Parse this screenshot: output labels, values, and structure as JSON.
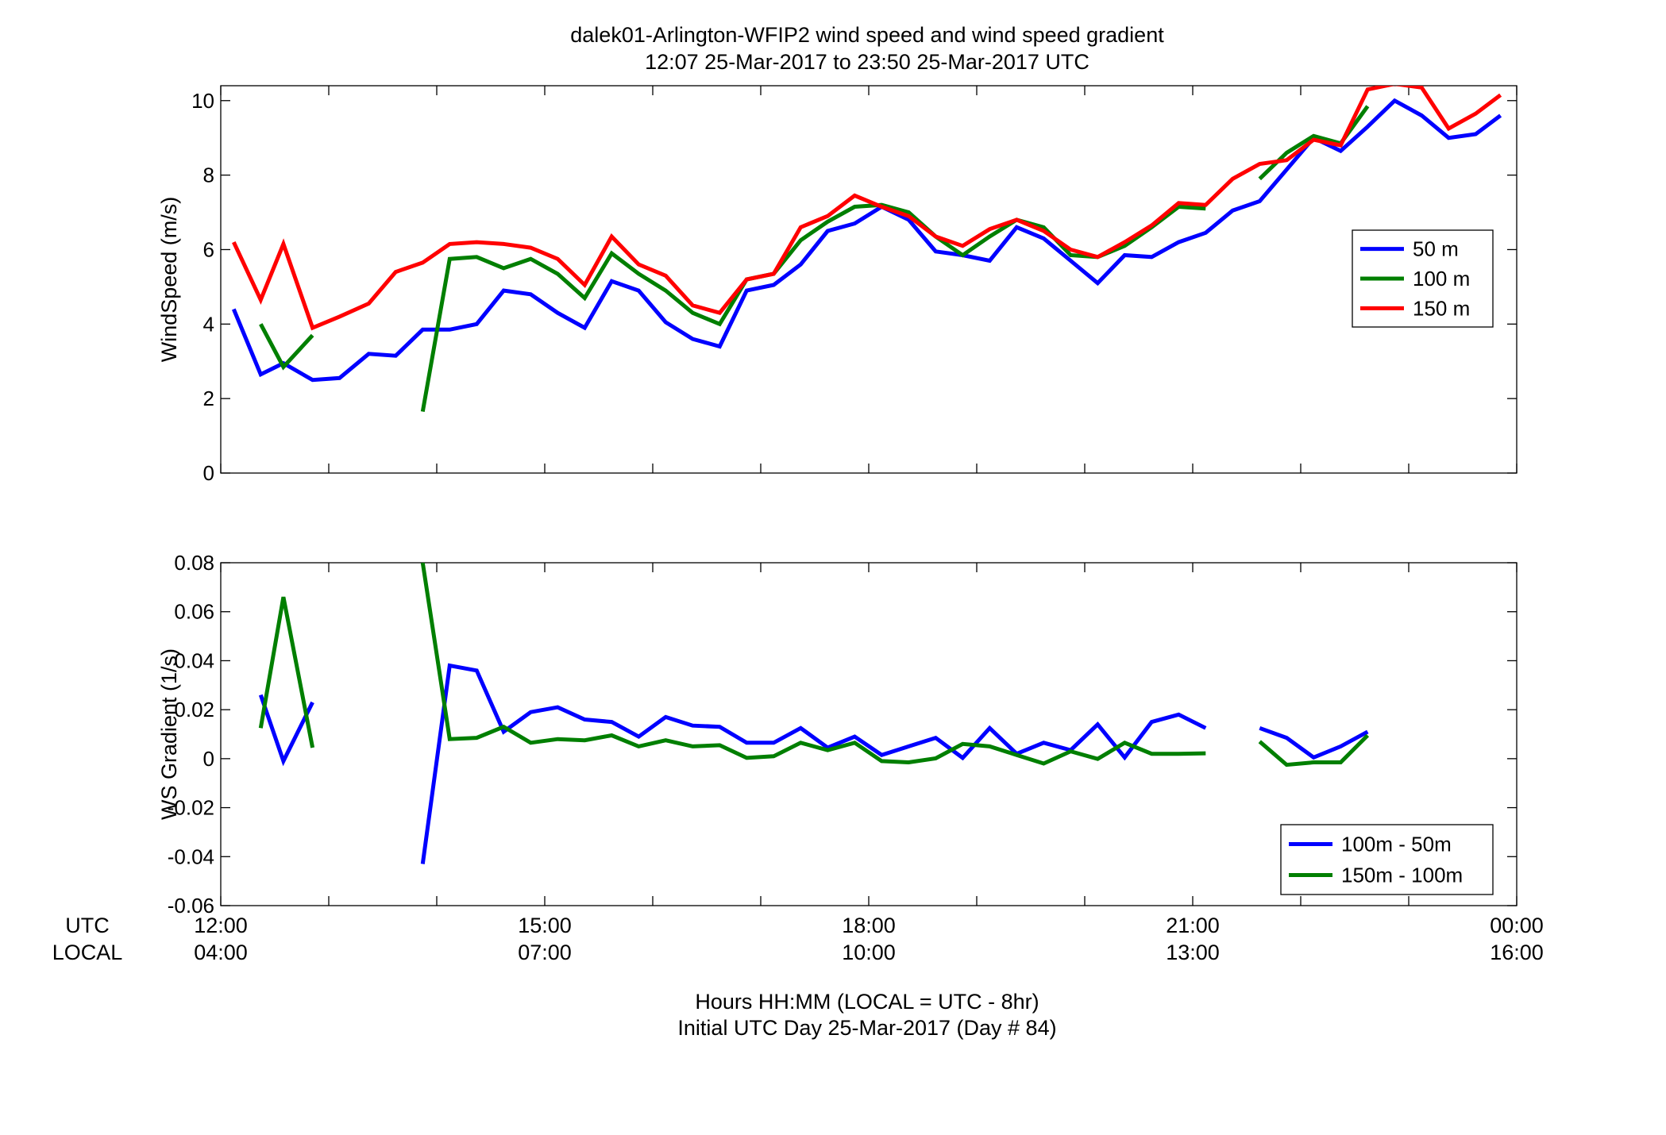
{
  "header": {
    "title_line1": "dalek01-Arlington-WFIP2  wind speed and wind speed gradient",
    "title_line2": "12:07 25-Mar-2017 to 23:50 25-Mar-2017  UTC"
  },
  "footer": {
    "xlabel_line1": "Hours HH:MM  (LOCAL = UTC - 8hr)",
    "xlabel_line2": "Initial UTC Day 25-Mar-2017 (Day # 84)",
    "row_label_utc": "UTC",
    "row_label_local": "LOCAL"
  },
  "x_ticks": {
    "utc": [
      "12:00",
      "15:00",
      "18:00",
      "21:00",
      "00:00"
    ],
    "local": [
      "04:00",
      "07:00",
      "10:00",
      "13:00",
      "16:00"
    ],
    "hours": [
      12,
      15,
      18,
      21,
      24
    ]
  },
  "colors": {
    "blue": "#0000ff",
    "green": "#007f00",
    "red": "#ff0000"
  },
  "chart_data": [
    {
      "type": "line",
      "id": "windspeed",
      "ylabel": "WindSpeed (m/s)",
      "xlim": [
        12,
        24
      ],
      "ylim": [
        0,
        10.4
      ],
      "yticks": [
        0,
        2,
        4,
        6,
        8,
        10
      ],
      "ytick_labels": [
        "0",
        "2",
        "4",
        "6",
        "8",
        "10"
      ],
      "minor_xticks_every_hours": 1,
      "legend_position": "right-center",
      "series": [
        {
          "name": "50 m",
          "color": "#0000ff",
          "x": [
            12.12,
            12.37,
            12.58,
            12.85,
            13.1,
            13.37,
            13.62,
            13.87,
            14.12,
            14.37,
            14.62,
            14.87,
            15.12,
            15.37,
            15.62,
            15.87,
            16.12,
            16.37,
            16.62,
            16.87,
            17.12,
            17.37,
            17.62,
            17.87,
            18.12,
            18.37,
            18.62,
            18.87,
            19.12,
            19.37,
            19.62,
            19.87,
            20.12,
            20.37,
            20.62,
            20.87,
            21.12,
            21.37,
            21.62,
            21.87,
            22.12,
            22.37,
            22.62,
            22.87,
            23.12,
            23.37,
            23.62,
            23.85
          ],
          "y": [
            4.4,
            2.65,
            2.95,
            2.5,
            2.55,
            3.2,
            3.15,
            3.85,
            3.85,
            4.0,
            4.9,
            4.8,
            4.3,
            3.9,
            5.15,
            4.9,
            4.05,
            3.6,
            3.4,
            4.9,
            5.05,
            5.6,
            6.5,
            6.7,
            7.15,
            6.8,
            5.95,
            5.85,
            5.7,
            6.6,
            6.3,
            5.7,
            5.1,
            5.85,
            5.8,
            6.2,
            6.45,
            7.05,
            7.3,
            8.15,
            9.0,
            8.65,
            9.3,
            10.0,
            9.6,
            9.0,
            9.1,
            9.6
          ]
        },
        {
          "name": "100 m",
          "color": "#007f00",
          "x": [
            12.37,
            12.58,
            12.85,
            null,
            13.87,
            14.12,
            14.37,
            14.62,
            14.87,
            15.12,
            15.37,
            15.62,
            15.87,
            16.12,
            16.37,
            16.62,
            16.87,
            17.12,
            17.37,
            17.62,
            17.87,
            18.12,
            18.37,
            18.62,
            18.87,
            19.12,
            19.37,
            19.62,
            19.87,
            20.12,
            20.37,
            20.62,
            20.87,
            21.12,
            null,
            21.62,
            21.87,
            22.12,
            22.37,
            22.62
          ],
          "y": [
            4.0,
            2.85,
            3.7,
            null,
            1.65,
            5.75,
            5.8,
            5.5,
            5.75,
            5.35,
            4.7,
            5.9,
            5.35,
            4.9,
            4.3,
            4.0,
            5.2,
            5.35,
            6.25,
            6.75,
            7.15,
            7.2,
            7.0,
            6.35,
            5.85,
            6.35,
            6.8,
            6.6,
            5.85,
            5.8,
            6.1,
            6.6,
            7.15,
            7.1,
            null,
            7.9,
            8.6,
            9.05,
            8.85,
            9.85
          ]
        },
        {
          "name": "150 m",
          "color": "#ff0000",
          "x": [
            12.12,
            12.37,
            12.58,
            12.85,
            13.1,
            13.37,
            13.62,
            13.87,
            14.12,
            14.37,
            14.62,
            14.87,
            15.12,
            15.37,
            15.62,
            15.87,
            16.12,
            16.37,
            16.62,
            16.87,
            17.12,
            17.37,
            17.62,
            17.87,
            18.12,
            18.37,
            18.62,
            18.87,
            19.12,
            19.37,
            19.62,
            19.87,
            20.12,
            20.37,
            20.62,
            20.87,
            21.12,
            21.37,
            21.62,
            21.87,
            22.12,
            22.37,
            22.62,
            22.87,
            23.12,
            23.37,
            23.62,
            23.85
          ],
          "y": [
            6.2,
            4.65,
            6.15,
            3.9,
            4.2,
            4.55,
            5.4,
            5.65,
            6.15,
            6.2,
            6.15,
            6.05,
            5.75,
            5.05,
            6.35,
            5.6,
            5.3,
            4.5,
            4.3,
            5.2,
            5.35,
            6.6,
            6.9,
            7.45,
            7.15,
            6.9,
            6.35,
            6.1,
            6.55,
            6.8,
            6.5,
            6.0,
            5.8,
            6.2,
            6.65,
            7.25,
            7.2,
            7.9,
            8.3,
            8.4,
            8.95,
            8.8,
            10.3,
            10.45,
            10.35,
            9.25,
            9.65,
            10.15
          ]
        }
      ]
    },
    {
      "type": "line",
      "id": "gradient",
      "ylabel": "WS Gradient (1/s)",
      "xlim": [
        12,
        24
      ],
      "ylim": [
        -0.06,
        0.08
      ],
      "yticks": [
        -0.06,
        -0.04,
        -0.02,
        0,
        0.02,
        0.04,
        0.06,
        0.08
      ],
      "ytick_labels": [
        "-0.06",
        "-0.04",
        "-0.02",
        "0",
        "0.02",
        "0.04",
        "0.06",
        "0.08"
      ],
      "minor_xticks_every_hours": 1,
      "legend_position": "bottom-right",
      "series": [
        {
          "name": "100m - 50m",
          "color": "#0000ff",
          "x": [
            12.37,
            12.58,
            12.85,
            null,
            13.87,
            14.12,
            14.37,
            14.62,
            14.87,
            15.12,
            15.37,
            15.62,
            15.87,
            16.12,
            16.37,
            16.62,
            16.87,
            17.12,
            17.37,
            17.62,
            17.87,
            18.12,
            18.37,
            18.62,
            18.87,
            19.12,
            19.37,
            19.62,
            19.87,
            20.12,
            20.37,
            20.62,
            20.87,
            21.12,
            null,
            21.62,
            21.87,
            22.12,
            22.37,
            22.62
          ],
          "y": [
            0.026,
            -0.001,
            0.023,
            null,
            -0.043,
            0.038,
            0.036,
            0.011,
            0.019,
            0.021,
            0.016,
            0.015,
            0.009,
            0.017,
            0.0135,
            0.013,
            0.0065,
            0.0065,
            0.0125,
            0.0045,
            0.009,
            0.0015,
            0.005,
            0.0085,
            0.0003,
            0.0125,
            0.002,
            0.0065,
            0.0035,
            0.014,
            0.0005,
            0.015,
            0.018,
            0.0125,
            null,
            0.0125,
            0.0085,
            0.0005,
            0.005,
            0.011
          ]
        },
        {
          "name": "150m - 100m",
          "color": "#007f00",
          "x": [
            12.37,
            12.58,
            12.85,
            null,
            13.87,
            14.12,
            14.37,
            14.62,
            14.87,
            15.12,
            15.37,
            15.62,
            15.87,
            16.12,
            16.37,
            16.62,
            16.87,
            17.12,
            17.37,
            17.62,
            17.87,
            18.12,
            18.37,
            18.62,
            18.87,
            19.12,
            19.37,
            19.62,
            19.87,
            20.12,
            20.37,
            20.62,
            20.87,
            21.12,
            null,
            21.62,
            21.87,
            22.12,
            22.37,
            22.62
          ],
          "y": [
            0.0125,
            0.066,
            0.0045,
            null,
            0.08,
            0.008,
            0.0085,
            0.013,
            0.0065,
            0.008,
            0.0075,
            0.0095,
            0.005,
            0.0075,
            0.005,
            0.0055,
            0.0003,
            0.001,
            0.0065,
            0.0035,
            0.0065,
            -0.001,
            -0.0015,
            0.0001,
            0.006,
            0.005,
            0.0015,
            -0.002,
            0.003,
            -0.0001,
            0.0065,
            0.002,
            0.002,
            0.0022,
            null,
            0.007,
            -0.0025,
            -0.0015,
            -0.0015,
            0.0095
          ]
        }
      ]
    }
  ]
}
